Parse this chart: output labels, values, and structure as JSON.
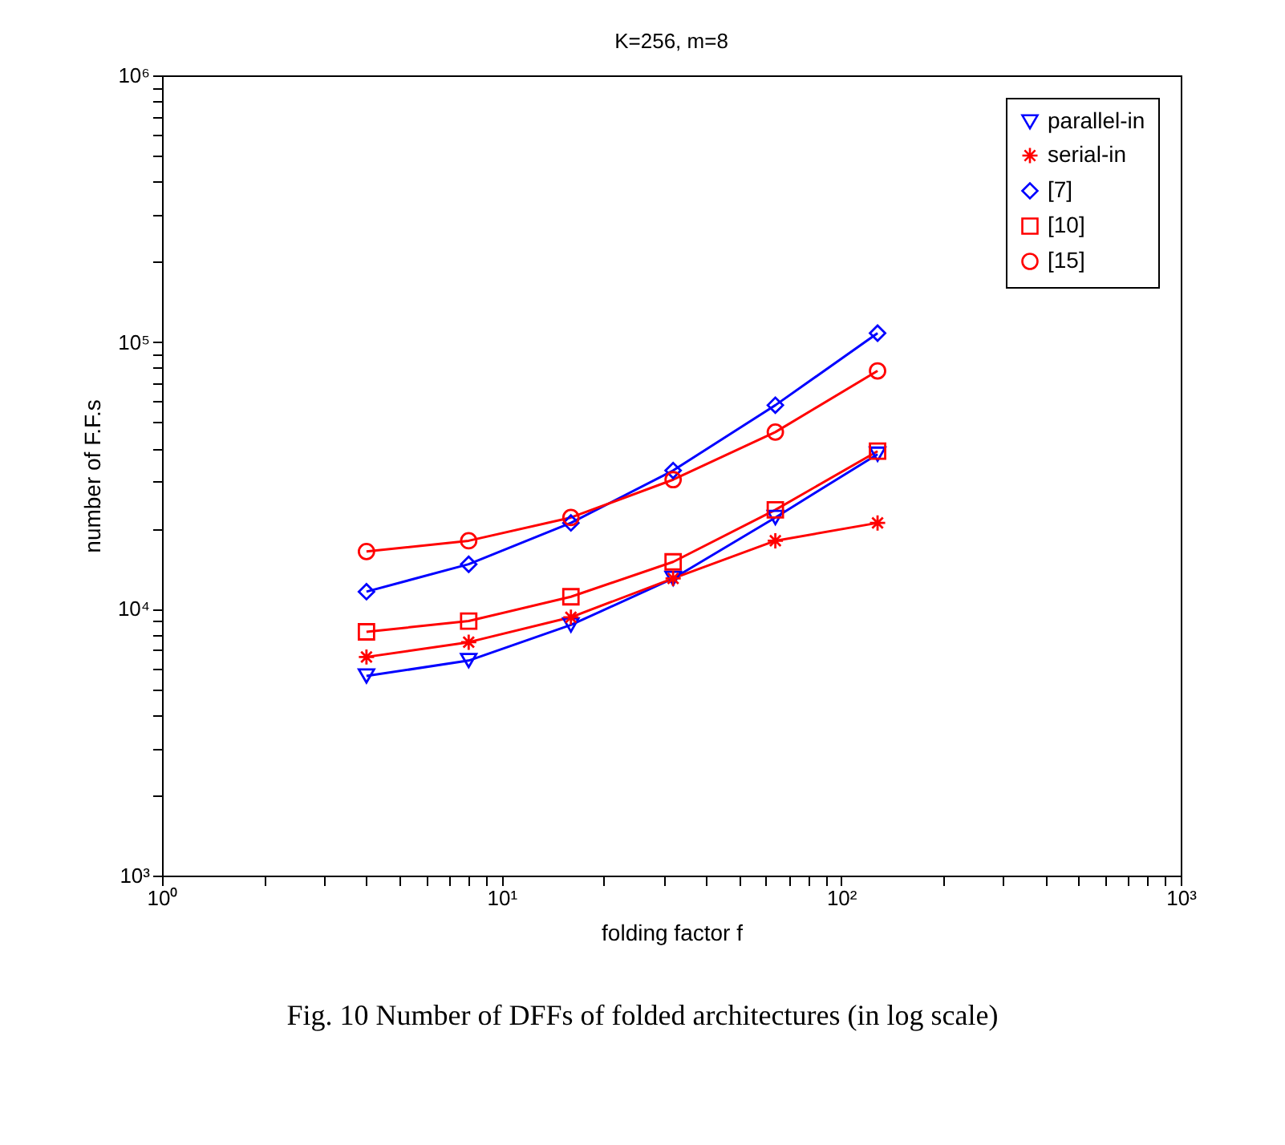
{
  "chart_data": {
    "type": "line",
    "title": "K=256, m=8",
    "xlabel": "folding factor f",
    "ylabel": "number of F.F.s",
    "log": "xy",
    "grid": false,
    "legend": "top right",
    "x": [
      4,
      8,
      16,
      32,
      64,
      128
    ],
    "xlim": [
      1,
      1000
    ],
    "ylim": [
      1000,
      1000000
    ],
    "xticks": [
      {
        "value": 1,
        "label": "10⁰"
      },
      {
        "value": 2,
        "label": null
      },
      {
        "value": 3,
        "label": null
      },
      {
        "value": 4,
        "label": null
      },
      {
        "value": 5,
        "label": null
      },
      {
        "value": 6,
        "label": null
      },
      {
        "value": 7,
        "label": null
      },
      {
        "value": 8,
        "label": null
      },
      {
        "value": 9,
        "label": null
      },
      {
        "value": 10,
        "label": "10¹"
      },
      {
        "value": 20,
        "label": null
      },
      {
        "value": 30,
        "label": null
      },
      {
        "value": 40,
        "label": null
      },
      {
        "value": 50,
        "label": null
      },
      {
        "value": 60,
        "label": null
      },
      {
        "value": 70,
        "label": null
      },
      {
        "value": 80,
        "label": null
      },
      {
        "value": 90,
        "label": null
      },
      {
        "value": 100,
        "label": "10²"
      },
      {
        "value": 200,
        "label": null
      },
      {
        "value": 300,
        "label": null
      },
      {
        "value": 400,
        "label": null
      },
      {
        "value": 500,
        "label": null
      },
      {
        "value": 600,
        "label": null
      },
      {
        "value": 700,
        "label": null
      },
      {
        "value": 800,
        "label": null
      },
      {
        "value": 900,
        "label": null
      },
      {
        "value": 1000,
        "label": "10³"
      }
    ],
    "yticks": [
      {
        "value": 1000,
        "label": "10³"
      },
      {
        "value": 2000,
        "label": null
      },
      {
        "value": 3000,
        "label": null
      },
      {
        "value": 4000,
        "label": null
      },
      {
        "value": 5000,
        "label": null
      },
      {
        "value": 6000,
        "label": null
      },
      {
        "value": 7000,
        "label": null
      },
      {
        "value": 8000,
        "label": null
      },
      {
        "value": 9000,
        "label": null
      },
      {
        "value": 10000,
        "label": "10⁴"
      },
      {
        "value": 20000,
        "label": null
      },
      {
        "value": 30000,
        "label": null
      },
      {
        "value": 40000,
        "label": null
      },
      {
        "value": 50000,
        "label": null
      },
      {
        "value": 60000,
        "label": null
      },
      {
        "value": 70000,
        "label": null
      },
      {
        "value": 80000,
        "label": null
      },
      {
        "value": 90000,
        "label": null
      },
      {
        "value": 100000,
        "label": "10⁵"
      },
      {
        "value": 200000,
        "label": null
      },
      {
        "value": 300000,
        "label": null
      },
      {
        "value": 400000,
        "label": null
      },
      {
        "value": 500000,
        "label": null
      },
      {
        "value": 600000,
        "label": null
      },
      {
        "value": 700000,
        "label": null
      },
      {
        "value": 800000,
        "label": null
      },
      {
        "value": 900000,
        "label": null
      },
      {
        "value": 1000000,
        "label": "10⁶"
      }
    ],
    "series": [
      {
        "name": "parallel-in",
        "color": "#0000ff",
        "marker": "triangle",
        "values": [
          5600,
          6400,
          8700,
          13000,
          22000,
          38000
        ]
      },
      {
        "name": "serial-in",
        "color": "#ff0000",
        "marker": "cross",
        "values": [
          6600,
          7500,
          9300,
          13000,
          18000,
          21000
        ]
      },
      {
        "name": "[7]",
        "color": "#0000ff",
        "marker": "diamond",
        "values": [
          11600,
          14700,
          21000,
          33000,
          58000,
          108000
        ]
      },
      {
        "name": "[10]",
        "color": "#ff0000",
        "marker": "square",
        "values": [
          8200,
          9000,
          11100,
          15000,
          23500,
          39000
        ]
      },
      {
        "name": "[15]",
        "color": "#ff0000",
        "marker": "circle",
        "values": [
          16400,
          18000,
          22000,
          30500,
          46000,
          78000
        ]
      }
    ],
    "annotations": [
      "Fig. 10    Number of DFFs of folded architectures (in log scale)"
    ]
  }
}
